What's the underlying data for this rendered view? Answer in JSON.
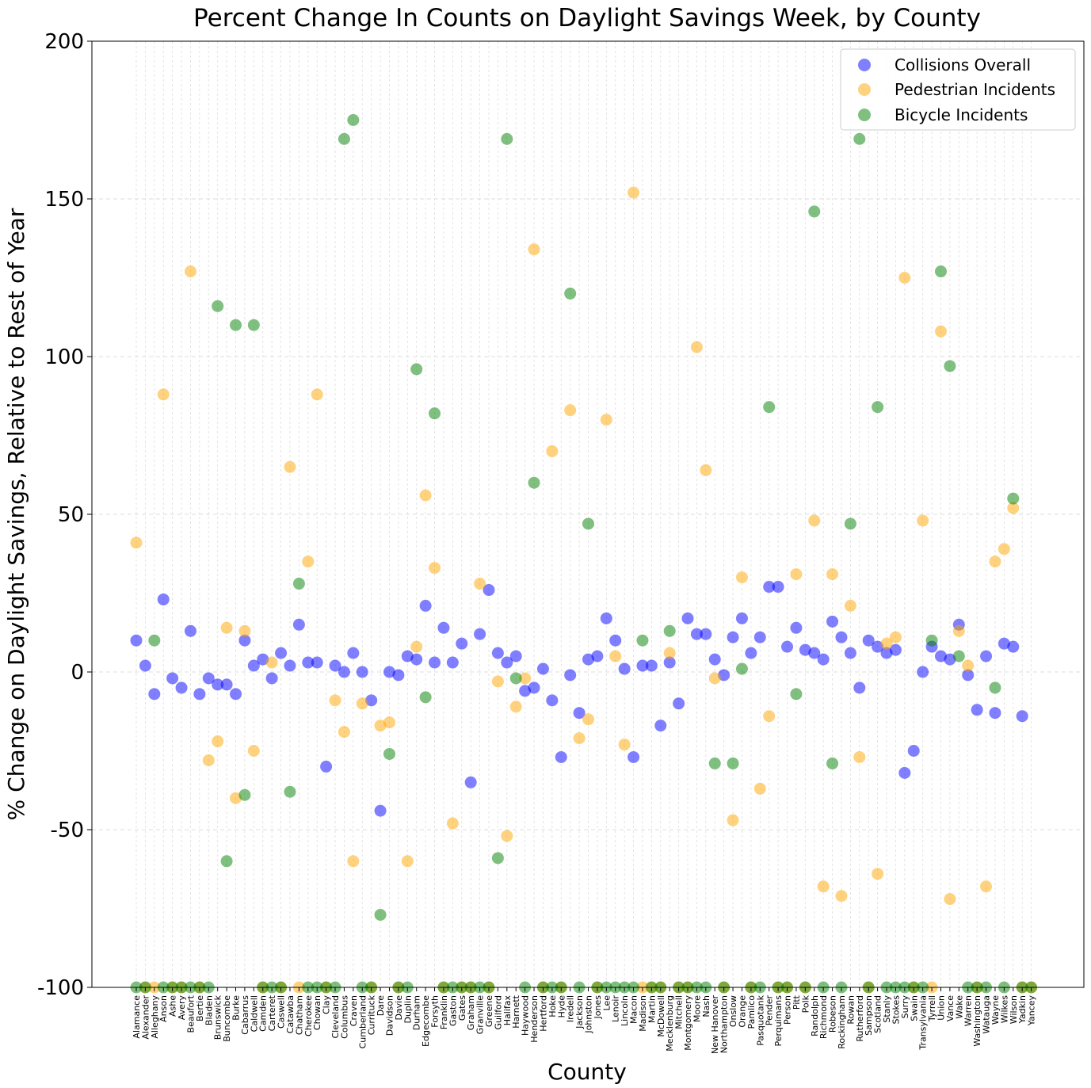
{
  "chart_data": {
    "type": "scatter",
    "title": "Percent Change In Counts on Daylight Savings Week, by County",
    "xlabel": "County",
    "ylabel": "% Change on Daylight Savings, Relative to Rest of Year",
    "ylim": [
      -100,
      200
    ],
    "yticks": [
      -100,
      -50,
      0,
      50,
      100,
      150,
      200
    ],
    "grid": true,
    "legend_position": "top-right",
    "categories": [
      "Alamance",
      "Alexander",
      "Alleghany",
      "Anson",
      "Ashe",
      "Avery",
      "Beaufort",
      "Bertie",
      "Bladen",
      "Brunswick",
      "Buncombe",
      "Burke",
      "Cabarrus",
      "Caldwell",
      "Camden",
      "Carteret",
      "Caswell",
      "Catawba",
      "Chatham",
      "Cherokee",
      "Chowan",
      "Clay",
      "Cleveland",
      "Columbus",
      "Craven",
      "Cumberland",
      "Currituck",
      "Dare",
      "Davidson",
      "Davie",
      "Duplin",
      "Durham",
      "Edgecombe",
      "Forsyth",
      "Franklin",
      "Gaston",
      "Gates",
      "Graham",
      "Granville",
      "Greene",
      "Guilford",
      "Halifax",
      "Harnett",
      "Haywood",
      "Henderson",
      "Hertford",
      "Hoke",
      "Hyde",
      "Iredell",
      "Jackson",
      "Johnston",
      "Jones",
      "Lee",
      "Lenoir",
      "Lincoln",
      "Macon",
      "Madison",
      "Martin",
      "McDowell",
      "Mecklenburg",
      "Mitchell",
      "Montgomery",
      "Moore",
      "Nash",
      "New Hanover",
      "Northampton",
      "Onslow",
      "Orange",
      "Pamlico",
      "Pasquotank",
      "Pender",
      "Perquimans",
      "Person",
      "Pitt",
      "Polk",
      "Randolph",
      "Richmond",
      "Robeson",
      "Rockingham",
      "Rowan",
      "Rutherford",
      "Sampson",
      "Scotland",
      "Stanly",
      "Stokes",
      "Surry",
      "Swain",
      "Transylvania",
      "Tyrrell",
      "Union",
      "Vance",
      "Wake",
      "Warren",
      "Washington",
      "Watauga",
      "Wayne",
      "Wilkes",
      "Wilson",
      "Yadkin",
      "Yancey"
    ],
    "series": [
      {
        "name": "Collisions Overall",
        "color": "#0000ff",
        "values": [
          10,
          2,
          -7,
          23,
          -2,
          -5,
          13,
          -7,
          -2,
          -4,
          -4,
          -7,
          10,
          2,
          4,
          -2,
          6,
          2,
          15,
          3,
          3,
          -30,
          2,
          0,
          6,
          0,
          -9,
          -44,
          0,
          -1,
          5,
          4,
          21,
          3,
          14,
          3,
          9,
          -35,
          12,
          26,
          6,
          3,
          5,
          -6,
          -5,
          1,
          -9,
          -27,
          -1,
          -13,
          4,
          5,
          17,
          10,
          1,
          -27,
          2,
          2,
          -17,
          3,
          -10,
          17,
          12,
          12,
          4,
          -1,
          11,
          17,
          6,
          11,
          27,
          27,
          8,
          14,
          7,
          6,
          4,
          16,
          11,
          6,
          -5,
          10,
          8,
          6,
          7,
          -32,
          -25,
          0,
          8,
          5,
          4,
          15,
          -1,
          -12,
          5,
          -13,
          9,
          8,
          -14
        ]
      },
      {
        "name": "Pedestrian Incidents",
        "color": "#ffa500",
        "values": [
          41,
          -100,
          -100,
          88,
          -100,
          -100,
          127,
          -100,
          -28,
          -22,
          14,
          -40,
          13,
          -25,
          -100,
          3,
          -100,
          65,
          -100,
          35,
          88,
          -100,
          -9,
          -19,
          -60,
          -10,
          -100,
          -17,
          -16,
          -100,
          -60,
          8,
          56,
          33,
          -100,
          -48,
          -100,
          -100,
          28,
          -100,
          -3,
          -52,
          -11,
          -2,
          134,
          -100,
          70,
          -100,
          83,
          -21,
          -15,
          -100,
          80,
          5,
          -23,
          152,
          -100,
          -100,
          -100,
          6,
          -100,
          -100,
          103,
          64,
          -2,
          -100,
          -47,
          30,
          -100,
          -37,
          -14,
          -100,
          -100,
          31,
          -100,
          48,
          -68,
          31,
          -71,
          21,
          -27,
          -100,
          -64,
          9,
          11,
          125,
          -100,
          48,
          -100,
          108,
          -72,
          13,
          2,
          -100,
          -68,
          35,
          39,
          52,
          -100,
          -100
        ]
      },
      {
        "name": "Bicycle Incidents",
        "color": "#008000",
        "values": [
          -100,
          -100,
          10,
          -100,
          -100,
          -100,
          -100,
          -100,
          -100,
          116,
          -60,
          110,
          -39,
          110,
          -100,
          -100,
          -100,
          -38,
          28,
          -100,
          -100,
          -100,
          -100,
          169,
          175,
          -100,
          -100,
          -77,
          -26,
          -100,
          -100,
          96,
          -8,
          82,
          -100,
          -100,
          -100,
          -100,
          -100,
          -100,
          -59,
          169,
          -2,
          -100,
          60,
          -100,
          -100,
          -100,
          120,
          -100,
          47,
          -100,
          -100,
          -100,
          -100,
          -100,
          10,
          -100,
          -100,
          13,
          -100,
          -100,
          -100,
          -100,
          -29,
          -100,
          -29,
          1,
          -100,
          -100,
          84,
          -100,
          -100,
          -7,
          -100,
          146,
          -100,
          -29,
          -100,
          47,
          169,
          -100,
          84,
          -100,
          -100,
          -100,
          -100,
          -100,
          10,
          127,
          97,
          5,
          -100,
          -100,
          -100,
          -5,
          -100,
          55,
          -100,
          -100
        ]
      }
    ]
  }
}
